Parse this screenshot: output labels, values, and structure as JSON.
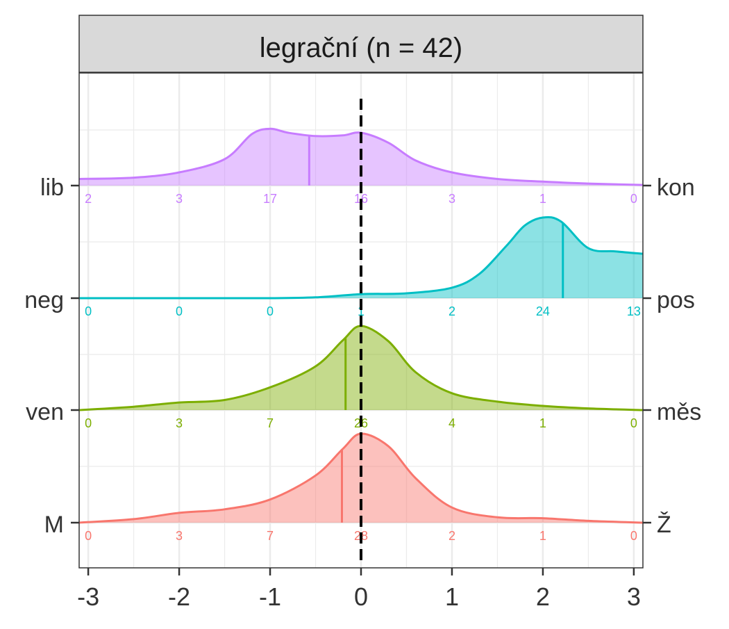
{
  "chart_data": {
    "type": "area",
    "title": "legrační (n = 42)",
    "xlim": [
      -3.1,
      3.1
    ],
    "x_ticks": [
      -3,
      -2,
      -1,
      0,
      1,
      2,
      3
    ],
    "x_tick_labels": [
      "-3",
      "-2",
      "-1",
      "0",
      "1",
      "2",
      "3"
    ],
    "reference_line": 0,
    "grid": true,
    "series": [
      {
        "left_label": "M",
        "right_label": "Ž",
        "color": "#F8766D",
        "mean": -0.21,
        "counts": [
          0,
          3,
          7,
          28,
          2,
          1,
          0
        ],
        "density": {
          "x": [
            -3.1,
            -2.5,
            -2,
            -1.5,
            -1,
            -0.5,
            -0.2,
            0,
            0.3,
            0.6,
            1,
            1.5,
            2,
            2.5,
            3.1
          ],
          "y": [
            0,
            0.04,
            0.11,
            0.15,
            0.26,
            0.53,
            0.83,
            1,
            0.86,
            0.5,
            0.17,
            0.06,
            0.05,
            0.02,
            0
          ]
        }
      },
      {
        "left_label": "ven",
        "right_label": "měs",
        "color": "#7CAE00",
        "mean": -0.17,
        "counts": [
          0,
          3,
          7,
          26,
          4,
          1,
          0
        ],
        "density": {
          "x": [
            -3.1,
            -2.5,
            -2,
            -1.5,
            -1,
            -0.5,
            -0.2,
            0,
            0.3,
            0.6,
            1,
            1.5,
            2,
            2.5,
            3.1
          ],
          "y": [
            0,
            0.04,
            0.09,
            0.12,
            0.27,
            0.52,
            0.83,
            1,
            0.82,
            0.45,
            0.2,
            0.1,
            0.05,
            0.02,
            0
          ]
        }
      },
      {
        "left_label": "neg",
        "right_label": "pos",
        "color": "#00BFC4",
        "mean": 2.22,
        "counts": [
          0,
          0,
          0,
          1,
          2,
          24,
          13
        ],
        "density": {
          "x": [
            -3.1,
            -2,
            -1,
            -0.5,
            0,
            0.5,
            1,
            1.3,
            1.6,
            1.8,
            2,
            2.2,
            2.5,
            2.8,
            3.1
          ],
          "y": [
            0,
            0,
            0,
            0.01,
            0.05,
            0.06,
            0.13,
            0.3,
            0.65,
            0.9,
            1,
            0.95,
            0.62,
            0.58,
            0.55
          ]
        }
      },
      {
        "left_label": "lib",
        "right_label": "kon",
        "color": "#C77CFF",
        "mean": -0.57,
        "counts": [
          2,
          3,
          17,
          16,
          3,
          1,
          0
        ],
        "density": {
          "x": [
            -3.1,
            -2.5,
            -2,
            -1.5,
            -1.2,
            -1,
            -0.8,
            -0.5,
            -0.2,
            0,
            0.3,
            0.6,
            1,
            1.5,
            2,
            2.5,
            3.1
          ],
          "y": [
            0.1,
            0.12,
            0.2,
            0.4,
            0.78,
            0.86,
            0.8,
            0.75,
            0.76,
            0.8,
            0.65,
            0.38,
            0.2,
            0.1,
            0.06,
            0.03,
            0.01
          ]
        }
      }
    ]
  }
}
